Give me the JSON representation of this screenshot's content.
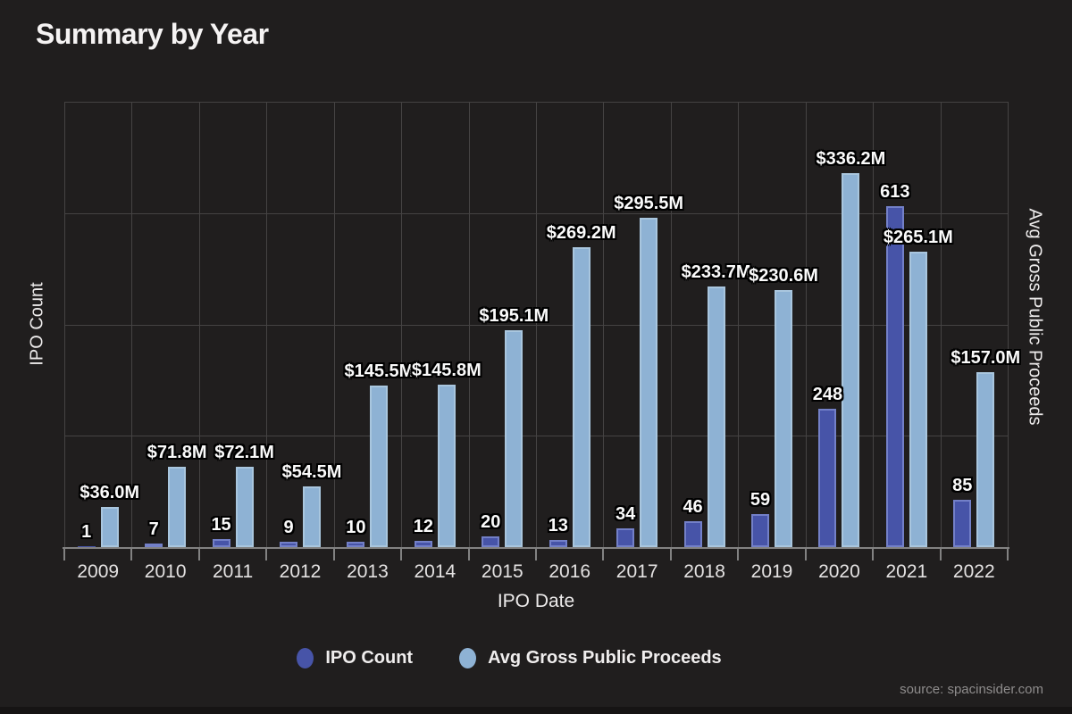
{
  "title": "Summary by Year",
  "source": "source: spacinsider.com",
  "colors": {
    "background": "#201E1E",
    "grid": "#454343",
    "axis": "#828282",
    "ipo_count_fill": "#4754A8",
    "ipo_count_border": "#7380C8",
    "proceeds_fill": "#8EB2D4",
    "proceeds_border": "#A9C6DE",
    "label_text": "#FAFAFA",
    "source_text": "#8E8C8C"
  },
  "chart_data": {
    "type": "bar",
    "title": "Summary by Year",
    "xlabel": "IPO Date",
    "ylabel_left": "IPO Count",
    "ylabel_right": "Avg Gross Public Proceeds",
    "grid": true,
    "legend_position": "bottom",
    "categories": [
      "2009",
      "2010",
      "2011",
      "2012",
      "2013",
      "2014",
      "2015",
      "2016",
      "2017",
      "2018",
      "2019",
      "2020",
      "2021",
      "2022"
    ],
    "series": [
      {
        "name": "IPO Count",
        "axis": "left",
        "color": "#4754A8",
        "border": "#7380C8",
        "values": [
          1,
          7,
          15,
          9,
          10,
          12,
          20,
          13,
          34,
          46,
          59,
          248,
          613,
          85
        ]
      },
      {
        "name": "Avg Gross Public Proceeds",
        "axis": "right",
        "color": "#8EB2D4",
        "border": "#A9C6DE",
        "values": [
          36.0,
          71.8,
          72.1,
          54.5,
          145.5,
          145.8,
          195.1,
          269.2,
          295.5,
          233.7,
          230.6,
          336.2,
          265.1,
          157.0
        ],
        "labels": [
          "$36.0M",
          "$71.8M",
          "$72.1M",
          "$54.5M",
          "$145.5M",
          "$145.8M",
          "$195.1M",
          "$269.2M",
          "$295.5M",
          "$233.7M",
          "$230.6M",
          "$336.2M",
          "$265.1M",
          "$157.0M"
        ]
      }
    ],
    "left_axis": {
      "min": 0,
      "max": 800
    },
    "right_axis": {
      "min": 0,
      "max": 400
    }
  },
  "legend": {
    "items": [
      {
        "label": "IPO Count",
        "color": "#4754A8"
      },
      {
        "label": "Avg Gross Public Proceeds",
        "color": "#8EB2D4"
      }
    ]
  }
}
